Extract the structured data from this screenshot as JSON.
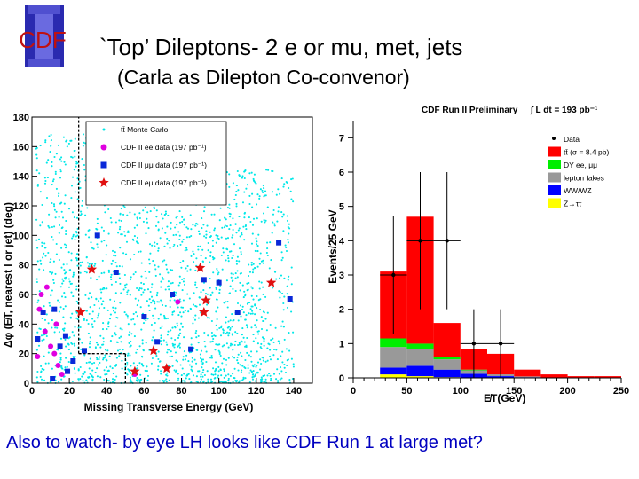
{
  "slide": {
    "title": "`Top’ Dileptons- 2 e or mu, met, jets",
    "subtitle": "(Carla as Dilepton Co-convenor)",
    "footer": "Also to watch- by eye LH looks like CDF Run 1 at large met?",
    "logo_text": "CDF"
  },
  "colors": {
    "title": "#000000",
    "footer": "#0000c0",
    "cyan": "#00e8e8",
    "magenta": "#e000e0",
    "blue": "#0a28d8",
    "red": "#e01010",
    "ttbar": "#ff0000",
    "dy": "#00ee00",
    "fakes": "#999999",
    "diboson": "#0000ff",
    "ztautau": "#ffff00"
  },
  "chart_data": [
    {
      "type": "scatter",
      "title": "",
      "xlabel": "Missing Transverse Energy (GeV)",
      "ylabel": "Δφ (E̸T, nearest l or jet) (deg)",
      "xlim": [
        0,
        150
      ],
      "ylim": [
        0,
        180
      ],
      "xticks": [
        0,
        20,
        40,
        60,
        80,
        100,
        120,
        140
      ],
      "yticks": [
        0,
        20,
        40,
        60,
        80,
        100,
        120,
        140,
        160,
        180
      ],
      "legend": {
        "placement": "top-left",
        "entries": [
          "tt̄ Monte Carlo",
          "CDF II ee data (197 pb⁻¹)",
          "CDF II μμ data (197 pb⁻¹)",
          "CDF II eμ data (197 pb⁻¹)"
        ]
      },
      "cuts": [
        {
          "x": 25,
          "y_from": 20,
          "y_to": 180
        },
        {
          "x_from": 25,
          "x_to": 50,
          "y": 20
        },
        {
          "x": 50,
          "y_from": 0,
          "y_to": 20
        }
      ],
      "background_density": {
        "series": "tt̄ Monte Carlo",
        "points": 2200,
        "x_range": [
          2,
          140
        ],
        "y_range": [
          0,
          170
        ]
      },
      "series": [
        {
          "name": "CDF II ee data (197 pb⁻¹)",
          "marker": "circle",
          "points": [
            [
              5,
              60
            ],
            [
              8,
              65
            ],
            [
              12,
              20
            ],
            [
              4,
              50
            ],
            [
              10,
              25
            ],
            [
              14,
              12
            ],
            [
              7,
              35
            ],
            [
              13,
              40
            ],
            [
              16,
              6
            ],
            [
              3,
              18
            ],
            [
              55,
              6
            ],
            [
              78,
              55
            ]
          ]
        },
        {
          "name": "CDF II μμ data (197 pb⁻¹)",
          "marker": "square",
          "points": [
            [
              3,
              30
            ],
            [
              6,
              48
            ],
            [
              11,
              3
            ],
            [
              15,
              25
            ],
            [
              18,
              32
            ],
            [
              22,
              15
            ],
            [
              19,
              8
            ],
            [
              35,
              100
            ],
            [
              45,
              75
            ],
            [
              60,
              45
            ],
            [
              67,
              28
            ],
            [
              75,
              60
            ],
            [
              85,
              23
            ],
            [
              92,
              70
            ],
            [
              100,
              68
            ],
            [
              110,
              48
            ],
            [
              132,
              95
            ],
            [
              138,
              57
            ],
            [
              12,
              50
            ],
            [
              28,
              22
            ]
          ]
        },
        {
          "name": "CDF II eμ data (197 pb⁻¹)",
          "marker": "star",
          "points": [
            [
              32,
              77
            ],
            [
              90,
              78
            ],
            [
              26,
              48
            ],
            [
              93,
              56
            ],
            [
              92,
              48
            ],
            [
              128,
              68
            ],
            [
              65,
              22
            ],
            [
              72,
              10
            ],
            [
              55,
              8
            ]
          ]
        }
      ]
    },
    {
      "type": "bar",
      "title": "CDF Run II Preliminary",
      "luminosity": "∫ L dt = 193 pb⁻¹",
      "xlabel": "E̸T(GeV)",
      "ylabel": "Events/25 GeV",
      "xlim": [
        0,
        250
      ],
      "ylim": [
        0,
        7.5
      ],
      "xticks": [
        0,
        50,
        100,
        150,
        200,
        250
      ],
      "yticks": [
        0,
        1,
        2,
        3,
        4,
        5,
        6,
        7
      ],
      "bin_edges": [
        25,
        50,
        75,
        100,
        125,
        150,
        175,
        200,
        225,
        250
      ],
      "stacked": true,
      "series": [
        {
          "name": "Z→ττ",
          "values": [
            0.1,
            0.05,
            0.02,
            0,
            0,
            0,
            0,
            0,
            0
          ]
        },
        {
          "name": "WW/WZ",
          "values": [
            0.2,
            0.3,
            0.22,
            0.12,
            0.05,
            0.02,
            0.01,
            0,
            0
          ]
        },
        {
          "name": "lepton fakes",
          "values": [
            0.6,
            0.5,
            0.3,
            0.1,
            0.05,
            0.02,
            0,
            0,
            0
          ]
        },
        {
          "name": "DY ee, μμ",
          "values": [
            0.25,
            0.15,
            0.06,
            0.02,
            0,
            0,
            0,
            0,
            0
          ]
        },
        {
          "name": "tt̄ (σ = 8.4 pb)",
          "values": [
            1.95,
            3.7,
            1.0,
            0.6,
            0.6,
            0.2,
            0.09,
            0.05,
            0.05
          ]
        }
      ],
      "data": {
        "name": "Data",
        "x": [
          37.5,
          62.5,
          87.5,
          112.5,
          137.5
        ],
        "y": [
          3,
          4,
          4,
          1,
          1
        ],
        "err": [
          1.73,
          2.0,
          2.0,
          1.0,
          1.0
        ]
      },
      "legend": {
        "placement": "top-right",
        "entries": [
          "Data",
          "tt̄ (σ = 8.4 pb)",
          "DY ee, μμ",
          "lepton fakes",
          "WW/WZ",
          "Z→ττ"
        ]
      }
    }
  ]
}
